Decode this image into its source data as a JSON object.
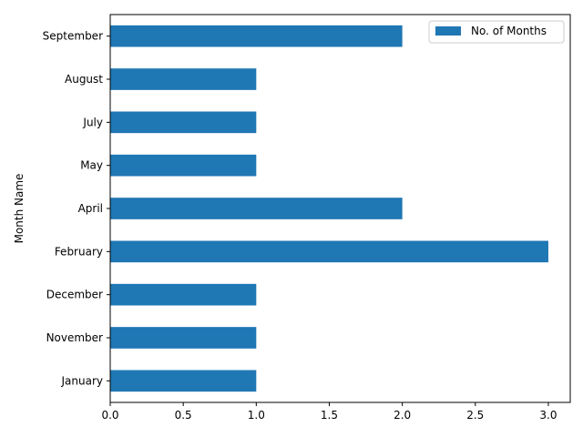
{
  "chart_data": {
    "type": "bar",
    "orientation": "horizontal",
    "categories": [
      "January",
      "November",
      "December",
      "February",
      "April",
      "May",
      "July",
      "August",
      "September"
    ],
    "series": [
      {
        "name": "No. of Months",
        "values": [
          1,
          1,
          1,
          3,
          2,
          1,
          1,
          1,
          2
        ]
      }
    ],
    "xticks": [
      "0.0",
      "0.5",
      "1.0",
      "1.5",
      "2.0",
      "2.5",
      "3.0"
    ],
    "xlabel": "",
    "ylabel": "Month Name",
    "xlim": [
      0,
      3.15
    ],
    "grid": false,
    "legend_position": "top-right",
    "colors": {
      "bar": "#1f77b4",
      "axis": "#000000",
      "legend_border": "#cccccc"
    }
  }
}
